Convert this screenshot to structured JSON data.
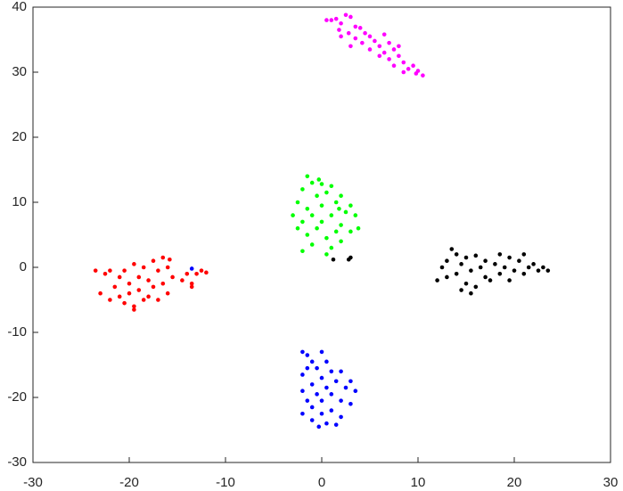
{
  "chart_data": {
    "type": "scatter",
    "xlim": [
      -30,
      30
    ],
    "ylim": [
      -30,
      40
    ],
    "xticks": [
      -30,
      -20,
      -10,
      0,
      10,
      20,
      30
    ],
    "yticks": [
      -30,
      -20,
      -10,
      0,
      10,
      20,
      30,
      40
    ],
    "grid": false,
    "series": [
      {
        "color": "#ff00ff",
        "x": [
          0.5,
          1,
          1.5,
          2.5,
          3,
          2,
          3.5,
          1.8,
          2.8,
          4,
          4.5,
          3.5,
          5,
          4.2,
          5.5,
          6,
          5,
          6.5,
          7,
          7.5,
          6,
          7,
          8,
          8.5,
          7.5,
          9,
          9.5,
          8.5,
          10,
          10.5,
          9.8,
          6.5,
          8,
          3,
          2
        ],
        "y": [
          38,
          38,
          38.2,
          38.8,
          38.5,
          37.5,
          37,
          36.5,
          36,
          36.8,
          36,
          35.2,
          35.5,
          34.5,
          34.8,
          34,
          33.5,
          33,
          34.5,
          33.5,
          32.5,
          32,
          32.5,
          31.5,
          31,
          30.5,
          31,
          30,
          30.2,
          29.5,
          29.8,
          35.8,
          34,
          34,
          35.5
        ]
      },
      {
        "color": "#00ff00",
        "x": [
          -1.5,
          -1,
          0,
          -2,
          1,
          0.5,
          -0.5,
          2,
          -2.5,
          1.5,
          3,
          0,
          -1.5,
          2.5,
          -3,
          -1,
          1,
          3.5,
          -2,
          0,
          2,
          -2.5,
          -0.5,
          1.5,
          3,
          -1.5,
          0.5,
          2,
          -1,
          1,
          -2,
          0.5,
          3.8,
          -0.3,
          1.8
        ],
        "y": [
          14,
          13,
          12.8,
          12,
          12.5,
          11.5,
          11,
          11,
          10,
          10,
          9.5,
          9.5,
          9,
          8.5,
          8,
          8,
          8,
          8,
          7,
          7,
          6.5,
          6,
          6,
          5.5,
          5.5,
          5,
          4.5,
          4,
          3.5,
          3,
          2.5,
          2,
          6,
          13.5,
          9
        ]
      },
      {
        "color": "#000000",
        "x": [
          12,
          12.5,
          13,
          13.5,
          14,
          14,
          14.5,
          15,
          15,
          15.5,
          16,
          16,
          16.5,
          17,
          17,
          17.5,
          18,
          18.5,
          18.5,
          19,
          19.5,
          20,
          20.5,
          21,
          21,
          21.5,
          22,
          22.5,
          23,
          23.5,
          15.5,
          14.5,
          13,
          19.5,
          1.2,
          2.8,
          3
        ],
        "y": [
          -2,
          0,
          1,
          2.8,
          -1,
          2,
          0.5,
          -2.5,
          1.5,
          -0.5,
          1.8,
          -3,
          0,
          -1.5,
          1,
          -2,
          0.5,
          2,
          -1,
          0,
          1.5,
          -0.5,
          1,
          -1,
          2,
          0,
          0.5,
          -0.5,
          0,
          -0.5,
          -4,
          -3.5,
          -1.5,
          -2,
          1.2,
          1.2,
          1.5
        ]
      },
      {
        "color": "#ff0000",
        "x": [
          -23.5,
          -23,
          -22.5,
          -22,
          -22,
          -21.5,
          -21,
          -21,
          -20.5,
          -20.5,
          -20,
          -20,
          -19.5,
          -19.5,
          -19,
          -19,
          -18.5,
          -18.5,
          -18,
          -18,
          -17.5,
          -17.5,
          -17,
          -17,
          -16.5,
          -16.5,
          -16,
          -16,
          -15.5,
          -14.5,
          -14,
          -13.5,
          -13.5,
          -13,
          -12,
          -12.5,
          -15.8,
          -19.5
        ],
        "y": [
          -0.5,
          -4,
          -1,
          -5,
          -0.5,
          -3,
          -4.5,
          -1.5,
          -5.5,
          -0.5,
          -2.5,
          -4,
          0.5,
          -6,
          -1.5,
          -3.5,
          -5,
          0,
          -2,
          -4.5,
          1,
          -3,
          -0.5,
          -5,
          1.5,
          -2.5,
          -4,
          0,
          -1.5,
          -2,
          -1,
          -2.5,
          -3,
          -1,
          -0.8,
          -0.5,
          1.2,
          -6.5
        ]
      },
      {
        "color": "#0000ff",
        "x": [
          -2,
          -1.5,
          0,
          -1,
          0.5,
          -1.5,
          -0.5,
          1,
          2,
          -2,
          0,
          1.5,
          3,
          -1,
          0.5,
          2.5,
          -2,
          -0.5,
          1,
          3.5,
          -1.5,
          0,
          2,
          3,
          -1,
          1,
          -2,
          0,
          2,
          -1,
          0.5,
          -0.3,
          1.5,
          -13.5
        ],
        "y": [
          -13,
          -13.5,
          -13,
          -14.5,
          -14.5,
          -15.5,
          -15.5,
          -16,
          -16,
          -16.5,
          -17,
          -17.5,
          -17.5,
          -18,
          -18.5,
          -18.5,
          -19,
          -19.5,
          -19.5,
          -19,
          -20.5,
          -20.5,
          -20.5,
          -21,
          -21.5,
          -22,
          -22.5,
          -22.5,
          -23,
          -23.5,
          -24,
          -24.5,
          -24.2,
          -0.2
        ]
      }
    ]
  }
}
